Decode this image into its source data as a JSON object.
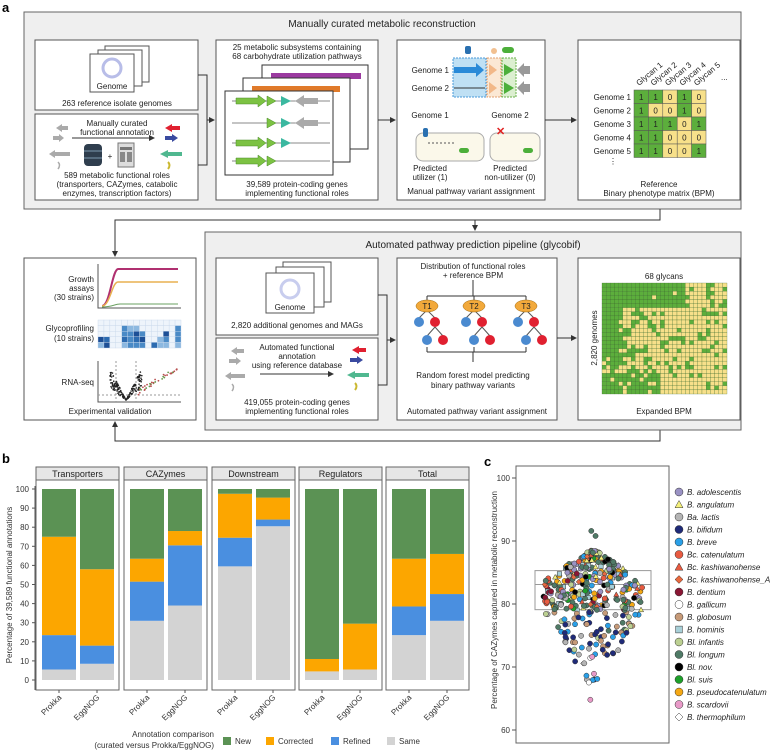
{
  "panel_labels": {
    "a": "a",
    "b": "b",
    "c": "c"
  },
  "top_section": {
    "title": "Manually curated metabolic reconstruction",
    "genome_box": {
      "page_label": "Genome",
      "caption": "263 reference isolate genomes"
    },
    "annotation_box": {
      "arrow_label": [
        "Manually curated",
        "functional annotation"
      ],
      "caption": [
        "589 metabolic functional roles",
        "(transporters, CAZymes, catabolic",
        "enzymes, transcription factors)"
      ]
    },
    "subsystems_box": {
      "header": [
        "25 metabolic subsystems containing",
        "68 carbohydrate utilization pathways"
      ],
      "caption": [
        "39,589 protein-coding genes",
        "implementing functional roles"
      ]
    },
    "manual_box": {
      "genome_labels": [
        "Genome 1",
        "Genome 2"
      ],
      "cell_labels": [
        "Genome 1",
        "Genome 2"
      ],
      "outcomes": [
        [
          "Predicted",
          "utilizer (1)"
        ],
        [
          "Predicted",
          "non-utilizer (0)"
        ]
      ],
      "caption": "Manual pathway variant assignment"
    },
    "bpm_box": {
      "glycans": [
        "Glycan 1",
        "Glycan 2",
        "Glycan 3",
        "Glycan 4",
        "Glycan 5"
      ],
      "more": "...",
      "genomes": [
        "Genome 1",
        "Genome 2",
        "Genome 3",
        "Genome 4",
        "Genome 5"
      ],
      "vdots": "⋮",
      "matrix": [
        [
          1,
          1,
          0,
          1,
          0
        ],
        [
          1,
          0,
          0,
          1,
          0
        ],
        [
          1,
          1,
          1,
          0,
          1
        ],
        [
          1,
          1,
          0,
          0,
          0
        ],
        [
          1,
          1,
          0,
          0,
          1
        ]
      ],
      "caption": [
        "Reference",
        "Binary phenotype matrix (BPM)"
      ],
      "colors": {
        "one": "#5cae3c",
        "zero": "#f7e08a"
      }
    }
  },
  "validation_box": {
    "growth": [
      "Growth",
      "assays",
      "(30 strains)"
    ],
    "glyco": [
      "Glycoprofiling",
      "(10 strains)"
    ],
    "rnaseq": "RNA-seq",
    "caption": "Experimental validation"
  },
  "bottom_section": {
    "title": "Automated pathway prediction pipeline (glycobif)",
    "genome_box": {
      "page_label": "Genome",
      "caption": "2,820 additional genomes and MAGs"
    },
    "annotation_box": {
      "arrow_label": [
        "Automated functional",
        "annotation",
        "using reference database"
      ],
      "caption": [
        "419,055 protein-coding genes",
        "implementing functional roles"
      ]
    },
    "auto_box": {
      "header": [
        "Distribution of functional roles",
        "+ reference BPM"
      ],
      "trees": [
        "T1",
        "T2",
        "T3"
      ],
      "caption_model": [
        "Random forest model predicting",
        "binary pathway variants"
      ],
      "caption": "Automated pathway variant assignment"
    },
    "expanded_box": {
      "top_label": "68 glycans",
      "side_label": "2,820 genomes",
      "caption": "Expanded BPM"
    }
  },
  "chart_data": [
    {
      "type": "bar",
      "stacked": true,
      "ylabel": "Percentage of 39,589 functional annotations",
      "ylim": [
        0,
        100
      ],
      "yticks": [
        0,
        10,
        20,
        30,
        40,
        50,
        60,
        70,
        80,
        90,
        100
      ],
      "facets": [
        "Transporters",
        "CAZymes",
        "Downstream",
        "Regulators",
        "Total"
      ],
      "categories": [
        "Prokka",
        "EggNOG"
      ],
      "legend_title": [
        "Annotation comparison",
        "(curated versus Prokka/EggNOG)"
      ],
      "legend_position": "bottom",
      "series": [
        {
          "name": "Same",
          "color": "#d3d3d3",
          "values": [
            [
              5.5,
              8.5
            ],
            [
              31,
              39
            ],
            [
              59.5,
              80.5
            ],
            [
              4.5,
              5.5
            ],
            [
              23.5,
              31
            ]
          ]
        },
        {
          "name": "Refined",
          "color": "#4a8fe0",
          "values": [
            [
              18,
              9.5
            ],
            [
              20.5,
              31.5
            ],
            [
              15,
              3.5
            ],
            [
              0,
              0
            ],
            [
              15,
              14
            ]
          ]
        },
        {
          "name": "Corrected",
          "color": "#fca600",
          "values": [
            [
              51.5,
              40
            ],
            [
              12,
              7.5
            ],
            [
              23,
              11.5
            ],
            [
              6.5,
              24
            ],
            [
              25,
              21
            ]
          ]
        },
        {
          "name": "New",
          "color": "#5b9254",
          "values": [
            [
              25,
              42
            ],
            [
              36.5,
              22
            ],
            [
              2.5,
              4.5
            ],
            [
              89,
              70.5
            ],
            [
              36.5,
              34
            ]
          ]
        }
      ],
      "legend_order": [
        "New",
        "Corrected",
        "Refined",
        "Same"
      ]
    },
    {
      "type": "scatter",
      "subtype": "beeswarm with boxplot",
      "ylabel": "Percentage of CAZymes captured in metabolic reconstruction",
      "ylim": [
        58,
        102
      ],
      "yticks": [
        60,
        70,
        80,
        90,
        100
      ],
      "box": {
        "q1": 79.1,
        "median": 83.1,
        "q3": 85.3
      },
      "range": [
        64.8,
        91.6
      ],
      "legend_position": "right",
      "species": [
        {
          "name": "B. adolescentis",
          "color": "#9a92c4",
          "shape": "circle"
        },
        {
          "name": "B. angulatum",
          "color": "#f4f07a",
          "shape": "triangle"
        },
        {
          "name": "Ba. lactis",
          "color": "#b4b4b4",
          "shape": "circle"
        },
        {
          "name": "B. bifidum",
          "color": "#1f2a78",
          "shape": "circle"
        },
        {
          "name": "B. breve",
          "color": "#2aa0e8",
          "shape": "circle"
        },
        {
          "name": "Bc. catenulatum",
          "color": "#e85a40",
          "shape": "circle"
        },
        {
          "name": "Bc. kashiwanohense",
          "color": "#e85a40",
          "shape": "triangle"
        },
        {
          "name": "Bc. kashiwanohense_A",
          "color": "#e86a40",
          "shape": "diamond"
        },
        {
          "name": "B. dentium",
          "color": "#8a1634",
          "shape": "circle"
        },
        {
          "name": "B. gallicum",
          "color": "#ffffff",
          "shape": "circle"
        },
        {
          "name": "B. globosum",
          "color": "#c69a78",
          "shape": "circle"
        },
        {
          "name": "B. hominis",
          "color": "#a8d0d8",
          "shape": "square"
        },
        {
          "name": "Bl. infantis",
          "color": "#bcd092",
          "shape": "circle"
        },
        {
          "name": "Bl. longum",
          "color": "#4f7a66",
          "shape": "circle"
        },
        {
          "name": "Bl. nov.",
          "color": "#000000",
          "shape": "circle"
        },
        {
          "name": "Bl. suis",
          "color": "#1ea02a",
          "shape": "circle"
        },
        {
          "name": "B. pseudocatenulatum",
          "color": "#f5a814",
          "shape": "circle"
        },
        {
          "name": "B. scardovii",
          "color": "#e89ac8",
          "shape": "circle"
        },
        {
          "name": "B. thermophilum",
          "color": "#ffffff",
          "shape": "diamond"
        }
      ]
    }
  ]
}
